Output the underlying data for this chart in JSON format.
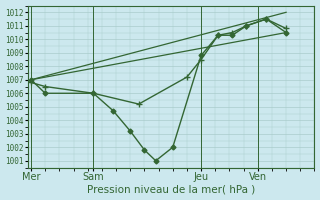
{
  "bg_color": "#cce8ee",
  "grid_color": "#aacccc",
  "line_color": "#336633",
  "title": "Pression niveau de la mer( hPa )",
  "ylim": [
    1000.5,
    1012.5
  ],
  "yticks": [
    1001,
    1002,
    1003,
    1004,
    1005,
    1006,
    1007,
    1008,
    1009,
    1010,
    1011,
    1012
  ],
  "xtick_labels": [
    "Mer",
    "Sam",
    "Jeu",
    "Ven"
  ],
  "xtick_positions": [
    0.0,
    0.22,
    0.6,
    0.8
  ],
  "x_vlines": [
    0.0,
    0.22,
    0.6,
    0.8
  ],
  "xlim": [
    -0.01,
    1.0
  ],
  "line_zigzag": {
    "x": [
      0.0,
      0.05,
      0.22,
      0.29,
      0.35,
      0.4,
      0.44,
      0.5,
      0.6,
      0.66,
      0.71,
      0.76,
      0.83,
      0.9
    ],
    "y": [
      1007.0,
      1006.0,
      1006.0,
      1004.7,
      1003.2,
      1001.8,
      1001.0,
      1002.0,
      1008.8,
      1010.3,
      1010.3,
      1011.0,
      1011.5,
      1010.5
    ],
    "marker": "D",
    "markersize": 2.5,
    "linewidth": 1.0
  },
  "line_cross": {
    "x": [
      0.0,
      0.05,
      0.22,
      0.38,
      0.55,
      0.6,
      0.66,
      0.71,
      0.76,
      0.83,
      0.9
    ],
    "y": [
      1006.8,
      1006.5,
      1006.0,
      1005.2,
      1007.2,
      1008.5,
      1010.3,
      1010.5,
      1011.0,
      1011.5,
      1010.8
    ],
    "marker": "+",
    "markersize": 5,
    "linewidth": 1.0
  },
  "line_trend1": {
    "x": [
      0.0,
      0.9
    ],
    "y": [
      1007.0,
      1010.5
    ],
    "linewidth": 0.9
  },
  "line_trend2": {
    "x": [
      0.0,
      0.9
    ],
    "y": [
      1007.0,
      1012.0
    ],
    "linewidth": 0.9
  }
}
